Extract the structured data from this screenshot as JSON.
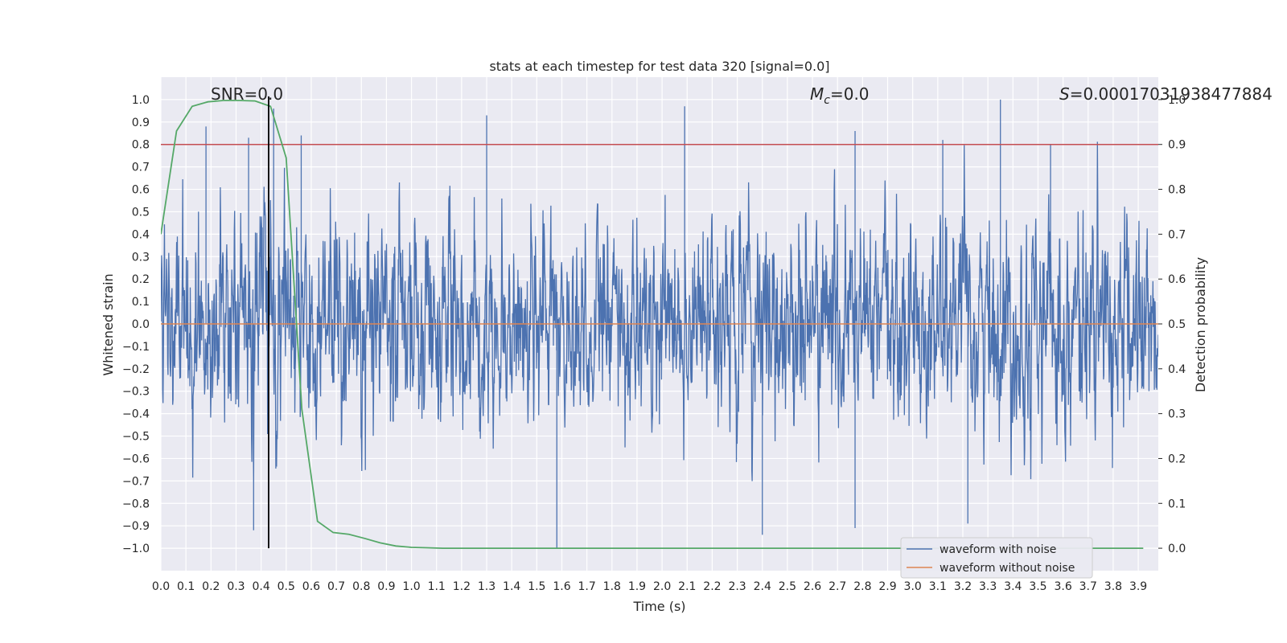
{
  "chart_data": {
    "type": "line",
    "title": "stats at each timestep for test data 320 [signal=0.0]",
    "xlabel": "Time (s)",
    "ylabel": "Whitened strain",
    "ylabel_right": "Detection probability",
    "xlim": [
      0.0,
      3.98
    ],
    "ylim": [
      -1.1,
      1.1
    ],
    "ylim_right": [
      -0.05,
      1.05
    ],
    "x_ticks": [
      "0.0",
      "0.1",
      "0.2",
      "0.3",
      "0.4",
      "0.5",
      "0.6",
      "0.7",
      "0.8",
      "0.9",
      "1.0",
      "1.1",
      "1.2",
      "1.3",
      "1.4",
      "1.5",
      "1.6",
      "1.7",
      "1.8",
      "1.9",
      "2.0",
      "2.1",
      "2.2",
      "2.3",
      "2.4",
      "2.5",
      "2.6",
      "2.7",
      "2.8",
      "2.9",
      "3.0",
      "3.1",
      "3.2",
      "3.3",
      "3.4",
      "3.5",
      "3.6",
      "3.7",
      "3.8",
      "3.9"
    ],
    "y_ticks": [
      "1.0",
      "0.9",
      "0.8",
      "0.7",
      "0.6",
      "0.5",
      "0.4",
      "0.3",
      "0.2",
      "0.1",
      "0.0",
      "−0.1",
      "−0.2",
      "−0.3",
      "−0.4",
      "−0.5",
      "−0.6",
      "−0.7",
      "−0.8",
      "−0.9",
      "−1.0"
    ],
    "y_ticks_right": [
      "1.0",
      "0.9",
      "0.8",
      "0.7",
      "0.6",
      "0.5",
      "0.4",
      "0.3",
      "0.2",
      "0.1",
      "0.0"
    ],
    "grid": true,
    "legend": {
      "placement": "lower-right"
    },
    "annotations": {
      "snr": "SNR=0.0",
      "mc_symbol": "M",
      "mc_sub": "c",
      "mc_value": "=0.0",
      "s_symbol": "S",
      "s_value": "=0.00017031938477884",
      "vline_x": 0.43,
      "hline_right": 0.9
    },
    "series": [
      {
        "name": "waveform with noise",
        "color": "#4c72b0",
        "axis": "left",
        "sample_rate": 2048,
        "seed": 320,
        "noise_amplitude_range": [
          -1.0,
          1.0
        ],
        "peak_points": {
          "x": [
            0.18,
            0.35,
            0.45,
            0.56,
            1.3,
            2.09,
            2.77,
            3.12,
            3.35,
            3.55,
            1.58,
            0.37,
            2.77,
            3.22,
            2.4
          ],
          "y": [
            0.88,
            0.83,
            0.96,
            0.84,
            0.93,
            0.97,
            0.86,
            0.82,
            1.0,
            0.8,
            -1.0,
            -0.92,
            -0.91,
            -0.89,
            -0.94
          ]
        }
      },
      {
        "name": "waveform without noise",
        "color": "#dd8452",
        "axis": "left",
        "x": [
          0.0,
          3.98
        ],
        "y": [
          0.0,
          0.0
        ]
      },
      {
        "name": "detection probability",
        "color": "#55a868",
        "axis": "right",
        "x": [
          0.0,
          0.0625,
          0.125,
          0.1875,
          0.25,
          0.3125,
          0.375,
          0.4375,
          0.5,
          0.5625,
          0.625,
          0.6875,
          0.75,
          0.8125,
          0.875,
          0.9375,
          1.0,
          1.0625,
          1.125,
          1.1875,
          1.25,
          3.92
        ],
        "y": [
          0.7,
          0.93,
          0.985,
          0.995,
          0.998,
          0.998,
          0.997,
          0.985,
          0.87,
          0.31,
          0.06,
          0.035,
          0.031,
          0.022,
          0.012,
          0.005,
          0.002,
          0.001,
          0.0,
          0.0,
          0.0,
          0.0
        ]
      }
    ]
  }
}
